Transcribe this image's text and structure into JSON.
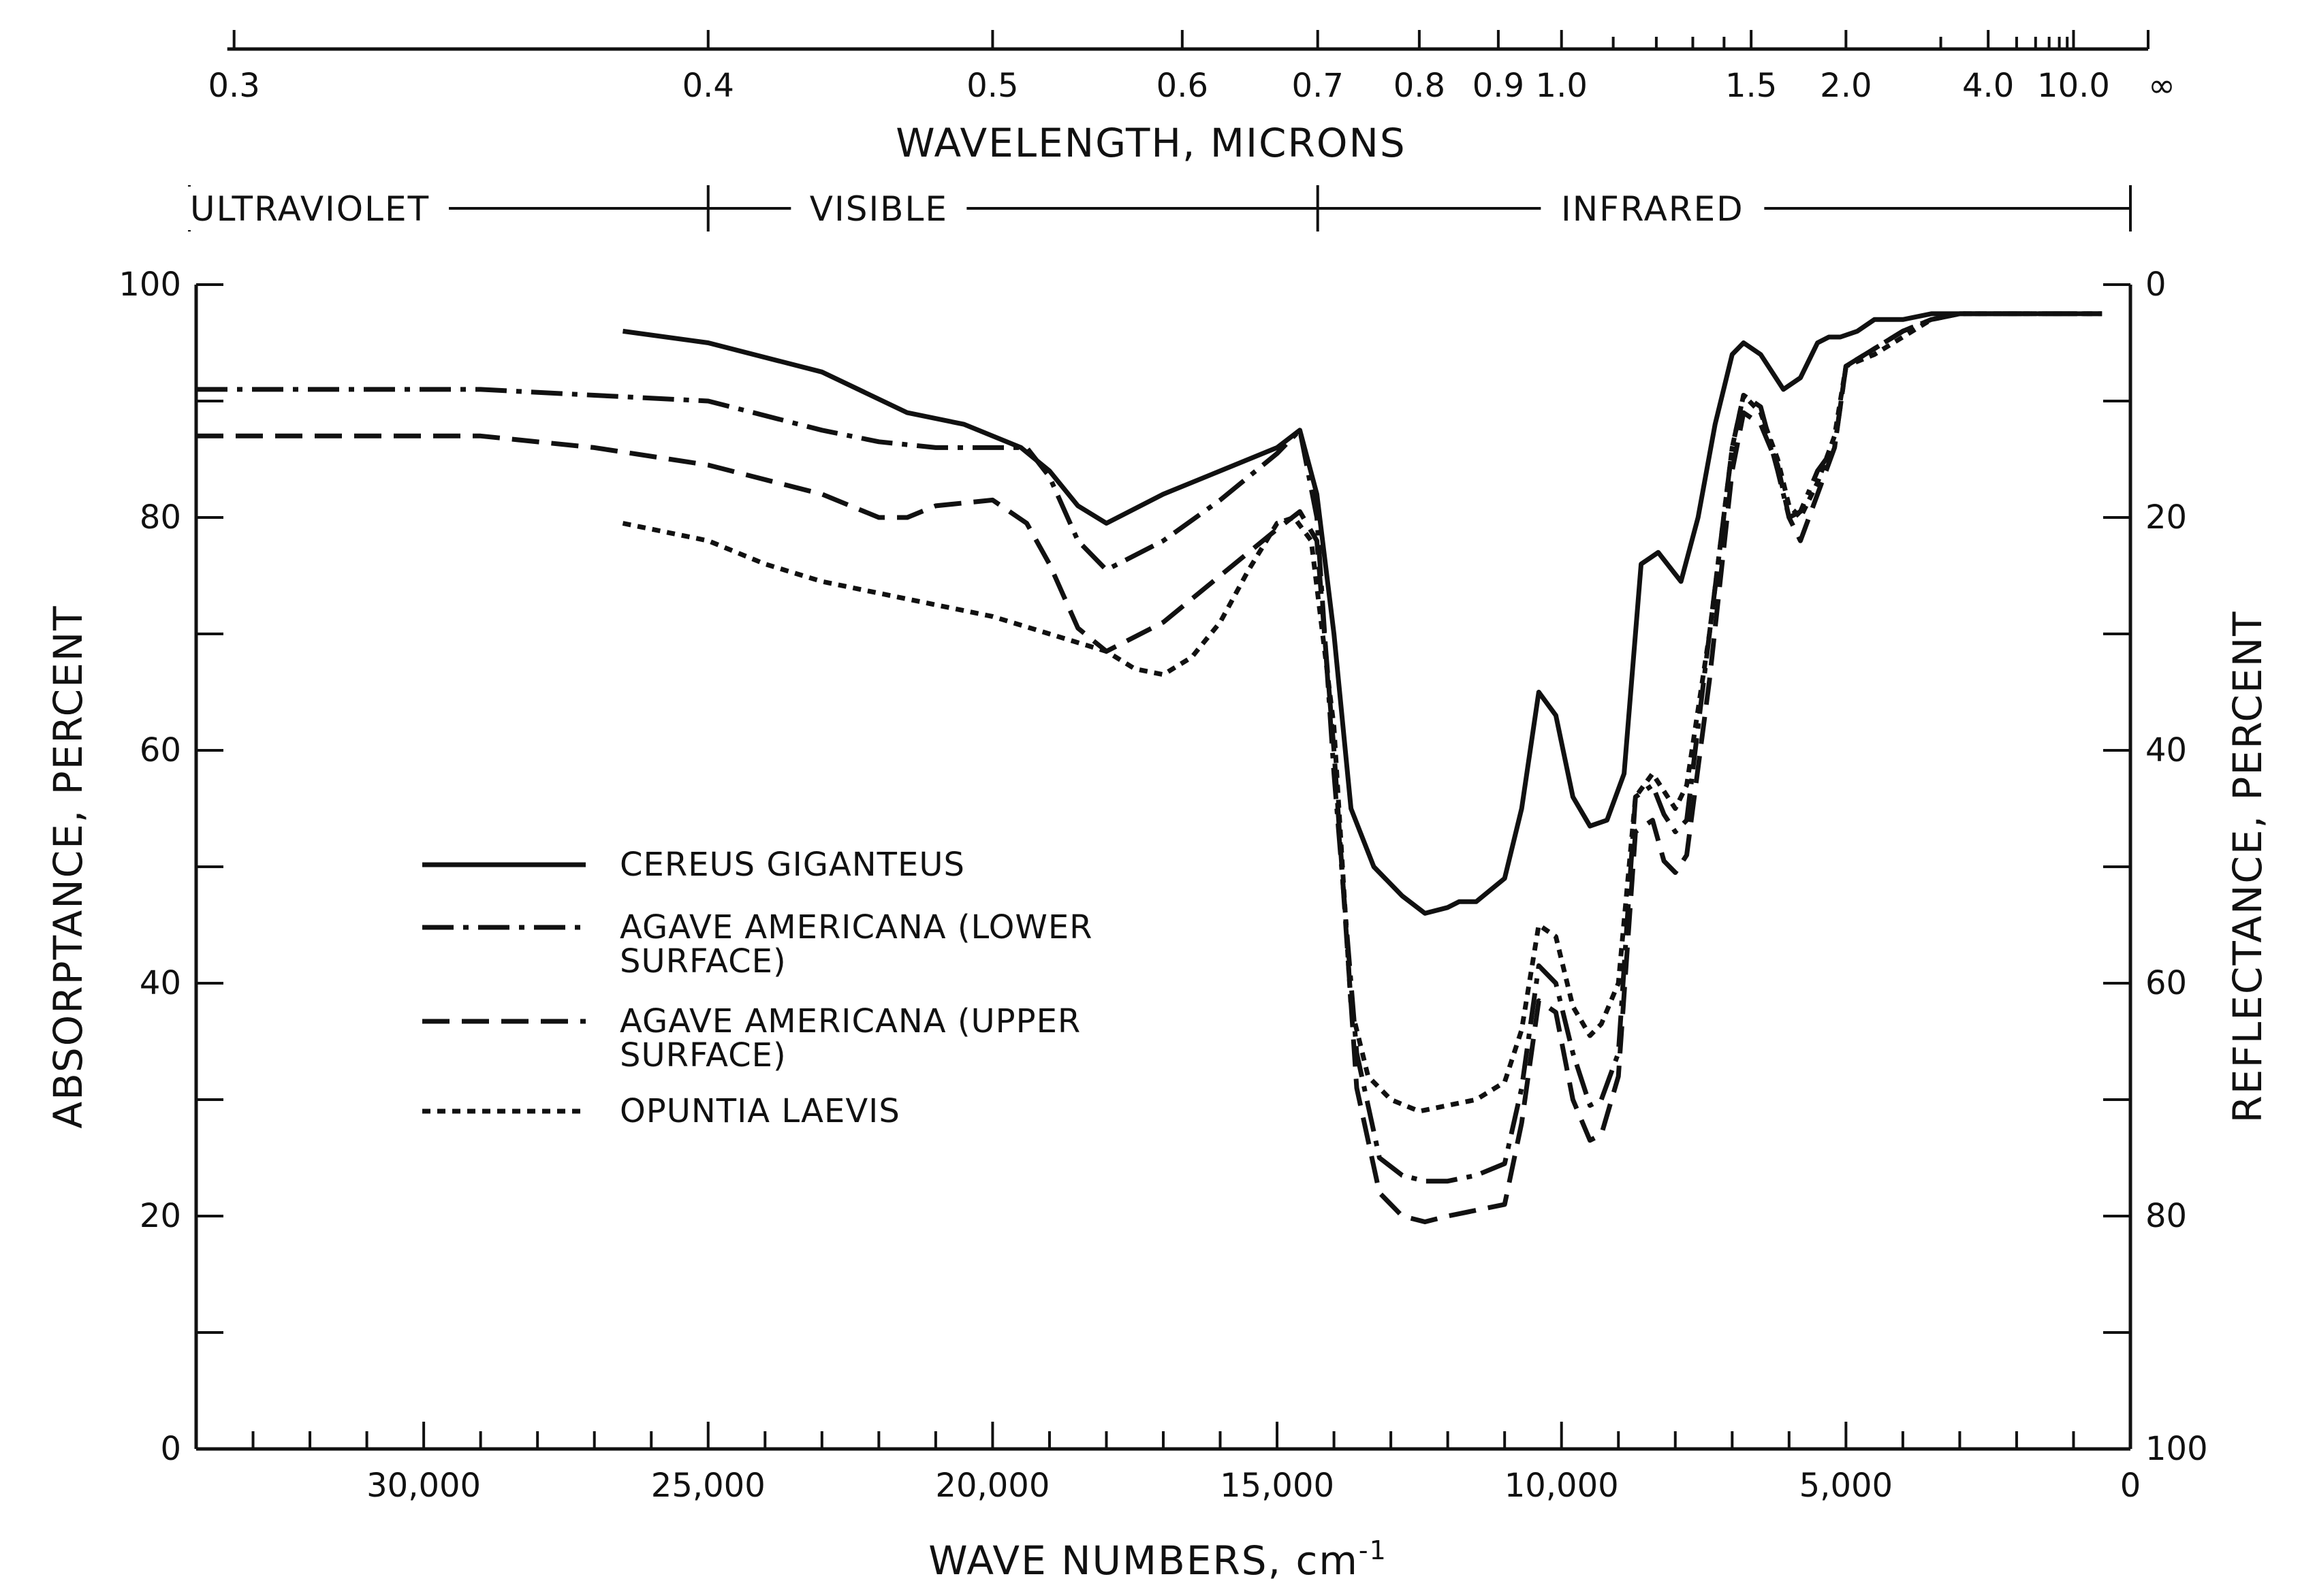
{
  "chart_data": {
    "type": "line",
    "x_axis": {
      "label": "WAVE NUMBERS, cm",
      "label_superscript": "-1",
      "range": [
        34000,
        0
      ],
      "reversed": true,
      "ticks": [
        {
          "value": 30000,
          "label": "30,000"
        },
        {
          "value": 25000,
          "label": "25,000"
        },
        {
          "value": 20000,
          "label": "20,000"
        },
        {
          "value": 15000,
          "label": "15,000"
        },
        {
          "value": 10000,
          "label": "10,000"
        },
        {
          "value": 5000,
          "label": "5,000"
        },
        {
          "value": 0,
          "label": "0"
        }
      ],
      "minor_tick_step": 1000
    },
    "top_axis": {
      "label": "WAVELENGTH, MICRONS",
      "ticks": [
        {
          "value": 0.3,
          "label": "0.3"
        },
        {
          "value": 0.4,
          "label": "0.4"
        },
        {
          "value": 0.5,
          "label": "0.5"
        },
        {
          "value": 0.6,
          "label": "0.6"
        },
        {
          "value": 0.7,
          "label": "0.7"
        },
        {
          "value": 0.8,
          "label": "0.8"
        },
        {
          "value": 0.9,
          "label": "0.9"
        },
        {
          "value": 1.0,
          "label": "1.0"
        },
        {
          "value": 1.5,
          "label": "1.5"
        },
        {
          "value": 2.0,
          "label": "2.0"
        },
        {
          "value": 4.0,
          "label": "4.0"
        },
        {
          "value": 10.0,
          "label": "10.0"
        },
        {
          "value": "inf",
          "label": "∞"
        }
      ],
      "minor_ticks": [
        1.1,
        1.2,
        1.3,
        1.4,
        3.0,
        5.0,
        6.0,
        7.0,
        8.0,
        9.0
      ]
    },
    "regions": [
      {
        "label": "ULTRAVIOLET",
        "from_micron": 0.3,
        "to_micron": 0.4
      },
      {
        "label": "VISIBLE",
        "from_micron": 0.4,
        "to_micron": 0.7
      },
      {
        "label": "INFRARED",
        "from_micron": 0.7,
        "to_micron": "inf"
      }
    ],
    "y_left": {
      "label": "ABSORPTANCE, PERCENT",
      "range": [
        0,
        100
      ],
      "ticks": [
        0,
        20,
        40,
        60,
        80,
        100
      ],
      "minor_tick_step": 10
    },
    "y_right": {
      "label": "REFLECTANCE, PERCENT",
      "range": [
        100,
        0
      ],
      "ticks": [
        0,
        20,
        40,
        60,
        80,
        100
      ],
      "minor_tick_step": 10
    },
    "legend_position": "center-left",
    "grid": false,
    "series": [
      {
        "name": "CEREUS GIGANTEUS",
        "line_style": "solid",
        "x": [
          26500,
          25000,
          23000,
          21500,
          20500,
          19500,
          19000,
          18500,
          18000,
          17000,
          16000,
          15000,
          14600,
          14300,
          14000,
          13700,
          13300,
          12800,
          12400,
          12000,
          11800,
          11500,
          11000,
          10700,
          10400,
          10100,
          9800,
          9500,
          9200,
          8900,
          8600,
          8300,
          7900,
          7600,
          7300,
          7000,
          6800,
          6500,
          6100,
          5800,
          5500,
          5300,
          5100,
          4800,
          4500,
          4000,
          3500,
          3000,
          2000,
          1000,
          500
        ],
        "y": [
          96,
          95,
          92.5,
          89,
          88,
          86,
          84,
          81,
          79.5,
          82,
          84,
          86,
          87.5,
          82,
          70,
          55,
          50,
          47.5,
          46,
          46.5,
          47,
          47,
          49,
          55,
          65,
          63,
          56,
          53.5,
          54,
          58,
          76,
          77,
          74.5,
          80,
          88,
          94,
          95,
          94,
          91,
          92,
          95,
          95.5,
          95.5,
          96,
          97,
          97,
          97.5,
          97.5,
          97.5,
          97.5,
          97.5
        ]
      },
      {
        "name": "AGAVE AMERICANA (LOWER SURFACE)",
        "line_style": "dash-dot",
        "x": [
          34000,
          31000,
          29000,
          27000,
          25000,
          23000,
          22000,
          21000,
          20000,
          19400,
          19000,
          18500,
          18000,
          17000,
          16000,
          15000,
          14600,
          14300,
          14000,
          13600,
          13200,
          12800,
          12400,
          12000,
          11500,
          11000,
          10700,
          10400,
          10100,
          9800,
          9500,
          9300,
          9000,
          8700,
          8400,
          8200,
          8000,
          7800,
          7400,
          7000,
          6800,
          6500,
          6200,
          6000,
          5800,
          5500,
          5200,
          5000,
          4500,
          4000,
          3500,
          3000,
          2000,
          1000,
          500
        ],
        "y": [
          91,
          91,
          91,
          90.5,
          90,
          87.5,
          86.5,
          86,
          86,
          86,
          83.5,
          78,
          75.5,
          78,
          81.5,
          85.5,
          87.5,
          80,
          58,
          34,
          25,
          23.5,
          23,
          23,
          23.5,
          24.5,
          31,
          41.5,
          40,
          34,
          29.5,
          30,
          34,
          56,
          57,
          54.5,
          53,
          54,
          70,
          86,
          90.5,
          89.5,
          84,
          80,
          80.5,
          84,
          86,
          93,
          94.5,
          96,
          97,
          97.5,
          97.5,
          97.5,
          97.5
        ]
      },
      {
        "name": "AGAVE AMERICANA (UPPER SURFACE)",
        "line_style": "dashed",
        "x": [
          34000,
          31000,
          29000,
          27000,
          25000,
          23000,
          22000,
          21500,
          21000,
          20000,
          19400,
          19000,
          18500,
          18000,
          17000,
          16000,
          15000,
          14600,
          14300,
          14000,
          13600,
          13200,
          12800,
          12400,
          12000,
          11500,
          11000,
          10700,
          10400,
          10100,
          9800,
          9500,
          9300,
          9000,
          8700,
          8400,
          8200,
          8000,
          7800,
          7400,
          7000,
          6800,
          6500,
          6200,
          6000,
          5800,
          5500,
          5200,
          5000,
          4500,
          4000,
          3500,
          3000,
          2000,
          1000,
          500
        ],
        "y": [
          87,
          87,
          87,
          86,
          84.5,
          82,
          80,
          80,
          81,
          81.5,
          79.5,
          76,
          70.5,
          68.5,
          71,
          75,
          79,
          80.5,
          78,
          60,
          31,
          22,
          20,
          19.5,
          20,
          20.5,
          21,
          28,
          38.5,
          37.5,
          30,
          26.5,
          27,
          32,
          53,
          54,
          50.5,
          49.5,
          51,
          66,
          84,
          89,
          88,
          84.5,
          80,
          78,
          82,
          86,
          93,
          94.5,
          96,
          97,
          97.5,
          97.5,
          97.5,
          97.5
        ]
      },
      {
        "name": "OPUNTIA LAEVIS",
        "line_style": "dotted",
        "x": [
          26500,
          25000,
          24000,
          23000,
          22000,
          21000,
          20000,
          19000,
          18000,
          17500,
          17000,
          16500,
          16000,
          15500,
          15000,
          14700,
          14400,
          14000,
          13700,
          13400,
          13000,
          12500,
          12000,
          11500,
          11000,
          10700,
          10400,
          10100,
          9800,
          9500,
          9300,
          9000,
          8700,
          8400,
          8200,
          8000,
          7800,
          7400,
          7000,
          6800,
          6500,
          6200,
          6000,
          5800,
          5500,
          5200,
          5000,
          4500,
          4000,
          3500,
          3000,
          2000,
          1000,
          500
        ],
        "y": [
          79.5,
          78,
          76,
          74.5,
          73.5,
          72.5,
          71.5,
          70,
          68.5,
          67,
          66.5,
          68,
          71,
          75.5,
          79.5,
          80,
          78,
          62,
          38,
          32,
          30,
          29,
          29.5,
          30,
          31.5,
          36,
          45,
          44,
          38,
          35.5,
          36.5,
          40,
          56,
          58,
          56.5,
          55,
          57,
          70,
          86,
          90.5,
          89,
          85,
          81,
          80,
          83,
          87,
          93,
          94,
          95.5,
          97,
          97.5,
          97.5,
          97.5,
          97.5
        ]
      }
    ]
  }
}
